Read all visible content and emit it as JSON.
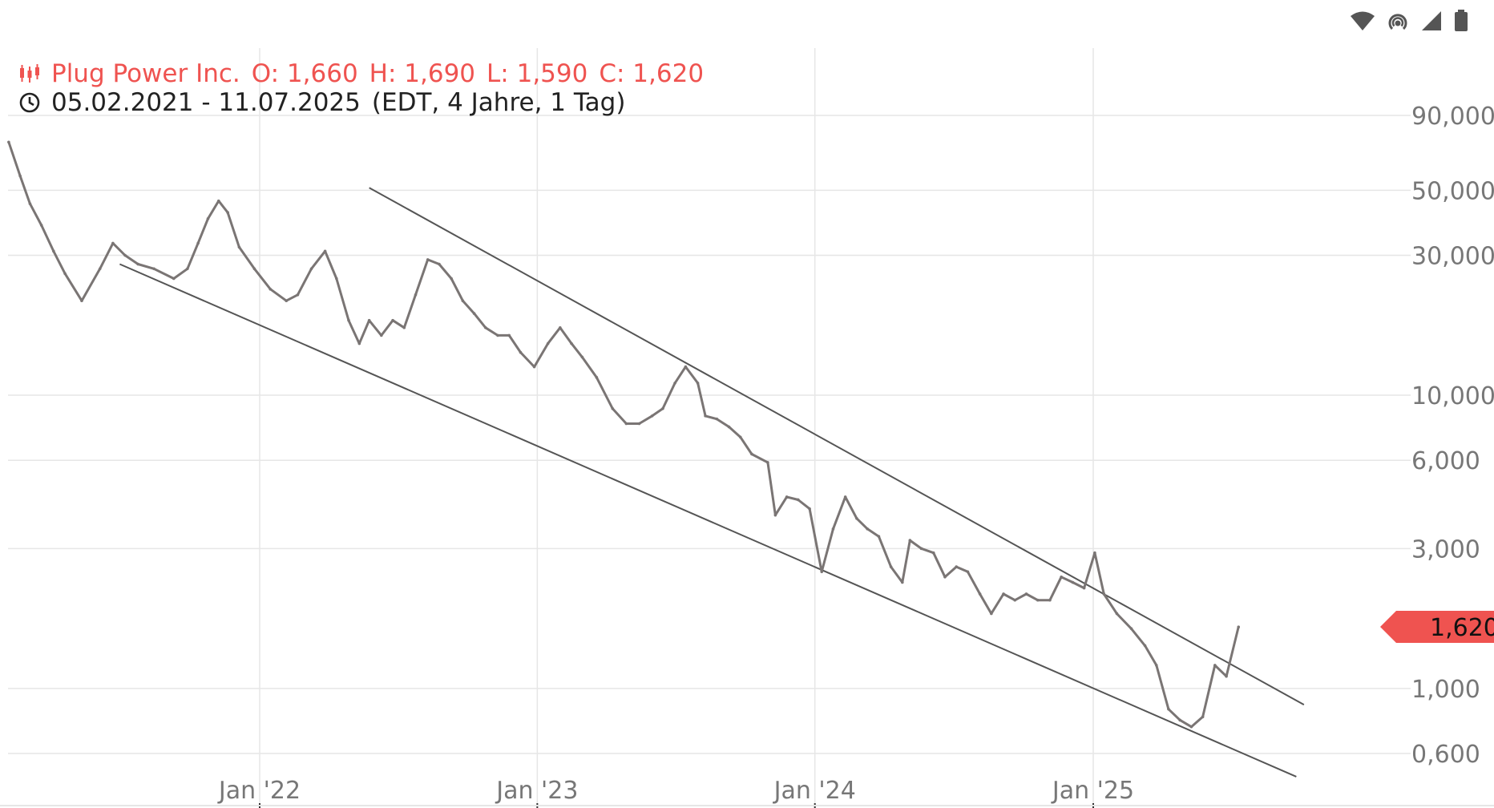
{
  "header": {
    "instrument": "Plug Power Inc.",
    "ohlc": {
      "o": "O: 1,660",
      "h": "H: 1,690",
      "l": "L: 1,590",
      "c": "C: 1,620"
    },
    "date_range": "05.02.2021 - 11.07.2025",
    "range_details": "(EDT, 4 Jahre, 1 Tag)"
  },
  "last_price_label": "1,620",
  "colors": {
    "accent": "#ef5350",
    "series": "#7a7574",
    "grid": "#e6e6e6",
    "axis_text": "#777777",
    "channel": "#555555"
  },
  "icons": [
    "candlestick-icon",
    "clock-icon",
    "wifi-icon",
    "hotspot-icon",
    "signal-icon",
    "battery-icon"
  ],
  "chart_data": {
    "type": "line",
    "title": "Plug Power Inc.",
    "y_scale": "log",
    "ylim": [
      0.52,
      150
    ],
    "xlim": [
      "2021-02-05",
      "2025-07-11"
    ],
    "grid": true,
    "y_ticks": [
      {
        "value": 90,
        "label": "90,000"
      },
      {
        "value": 50,
        "label": "50,000"
      },
      {
        "value": 30,
        "label": "30,000"
      },
      {
        "value": 10,
        "label": "10,000"
      },
      {
        "value": 6,
        "label": "6,000"
      },
      {
        "value": 3,
        "label": "3,000"
      },
      {
        "value": 1,
        "label": "1,000"
      },
      {
        "value": 0.6,
        "label": "0,600"
      }
    ],
    "x_ticks": [
      {
        "value": "2022-01-01",
        "label": "Jan '22"
      },
      {
        "value": "2023-01-01",
        "label": "Jan '23"
      },
      {
        "value": "2024-01-01",
        "label": "Jan '24"
      },
      {
        "value": "2025-01-01",
        "label": "Jan '25"
      }
    ],
    "series": [
      {
        "points": [
          [
            "2021-02-05",
            73
          ],
          [
            "2021-02-20",
            56
          ],
          [
            "2021-03-05",
            45
          ],
          [
            "2021-03-20",
            38
          ],
          [
            "2021-04-05",
            31
          ],
          [
            "2021-04-20",
            26
          ],
          [
            "2021-05-12",
            21
          ],
          [
            "2021-06-05",
            27
          ],
          [
            "2021-06-22",
            33
          ],
          [
            "2021-07-08",
            30
          ],
          [
            "2021-07-25",
            28
          ],
          [
            "2021-08-15",
            27
          ],
          [
            "2021-09-10",
            25
          ],
          [
            "2021-09-28",
            27
          ],
          [
            "2021-10-12",
            33
          ],
          [
            "2021-10-25",
            40
          ],
          [
            "2021-11-08",
            46
          ],
          [
            "2021-11-20",
            42
          ],
          [
            "2021-12-05",
            32
          ],
          [
            "2021-12-25",
            27
          ],
          [
            "2022-01-15",
            23
          ],
          [
            "2022-02-05",
            21
          ],
          [
            "2022-02-20",
            22
          ],
          [
            "2022-03-10",
            27
          ],
          [
            "2022-03-28",
            31
          ],
          [
            "2022-04-12",
            25
          ],
          [
            "2022-04-28",
            18
          ],
          [
            "2022-05-12",
            15
          ],
          [
            "2022-05-25",
            18
          ],
          [
            "2022-06-10",
            16
          ],
          [
            "2022-06-25",
            18
          ],
          [
            "2022-07-10",
            17
          ],
          [
            "2022-07-25",
            22
          ],
          [
            "2022-08-10",
            29
          ],
          [
            "2022-08-25",
            28
          ],
          [
            "2022-09-10",
            25
          ],
          [
            "2022-09-25",
            21
          ],
          [
            "2022-10-10",
            19
          ],
          [
            "2022-10-25",
            17
          ],
          [
            "2022-11-10",
            16
          ],
          [
            "2022-11-25",
            16
          ],
          [
            "2022-12-10",
            14
          ],
          [
            "2022-12-28",
            12.5
          ],
          [
            "2023-01-15",
            15
          ],
          [
            "2023-01-31",
            17
          ],
          [
            "2023-02-15",
            15
          ],
          [
            "2023-03-01",
            13.5
          ],
          [
            "2023-03-20",
            11.5
          ],
          [
            "2023-04-10",
            9
          ],
          [
            "2023-04-28",
            8
          ],
          [
            "2023-05-15",
            8
          ],
          [
            "2023-06-01",
            8.5
          ],
          [
            "2023-06-15",
            9
          ],
          [
            "2023-07-01",
            11
          ],
          [
            "2023-07-15",
            12.5
          ],
          [
            "2023-07-31",
            11
          ],
          [
            "2023-08-10",
            8.5
          ],
          [
            "2023-08-25",
            8.3
          ],
          [
            "2023-09-10",
            7.8
          ],
          [
            "2023-09-25",
            7.2
          ],
          [
            "2023-10-10",
            6.3
          ],
          [
            "2023-10-31",
            5.9
          ],
          [
            "2023-11-10",
            3.9
          ],
          [
            "2023-11-25",
            4.5
          ],
          [
            "2023-12-10",
            4.4
          ],
          [
            "2023-12-25",
            4.1
          ],
          [
            "2024-01-10",
            2.5
          ],
          [
            "2024-01-25",
            3.5
          ],
          [
            "2024-02-10",
            4.5
          ],
          [
            "2024-02-25",
            3.8
          ],
          [
            "2024-03-10",
            3.5
          ],
          [
            "2024-03-25",
            3.3
          ],
          [
            "2024-04-10",
            2.6
          ],
          [
            "2024-04-25",
            2.3
          ],
          [
            "2024-05-05",
            3.2
          ],
          [
            "2024-05-20",
            3.0
          ],
          [
            "2024-06-05",
            2.9
          ],
          [
            "2024-06-20",
            2.4
          ],
          [
            "2024-07-05",
            2.6
          ],
          [
            "2024-07-20",
            2.5
          ],
          [
            "2024-08-05",
            2.1
          ],
          [
            "2024-08-20",
            1.8
          ],
          [
            "2024-09-05",
            2.1
          ],
          [
            "2024-09-20",
            2.0
          ],
          [
            "2024-10-05",
            2.1
          ],
          [
            "2024-10-20",
            2.0
          ],
          [
            "2024-11-05",
            2.0
          ],
          [
            "2024-11-20",
            2.4
          ],
          [
            "2024-12-05",
            2.3
          ],
          [
            "2024-12-20",
            2.2
          ],
          [
            "2025-01-03",
            2.9
          ],
          [
            "2025-01-15",
            2.1
          ],
          [
            "2025-02-01",
            1.8
          ],
          [
            "2025-02-20",
            1.6
          ],
          [
            "2025-03-10",
            1.4
          ],
          [
            "2025-03-25",
            1.2
          ],
          [
            "2025-04-10",
            0.85
          ],
          [
            "2025-04-25",
            0.78
          ],
          [
            "2025-05-10",
            0.74
          ],
          [
            "2025-05-25",
            0.8
          ],
          [
            "2025-06-10",
            1.2
          ],
          [
            "2025-06-25",
            1.1
          ],
          [
            "2025-07-11",
            1.62
          ]
        ]
      }
    ],
    "trend_channel": [
      {
        "from": [
          "2021-07-01",
          28
        ],
        "to": [
          "2025-09-25",
          0.5
        ]
      },
      {
        "from": [
          "2022-05-25",
          51
        ],
        "to": [
          "2025-10-05",
          0.88
        ]
      }
    ],
    "last_value": 1.62
  }
}
